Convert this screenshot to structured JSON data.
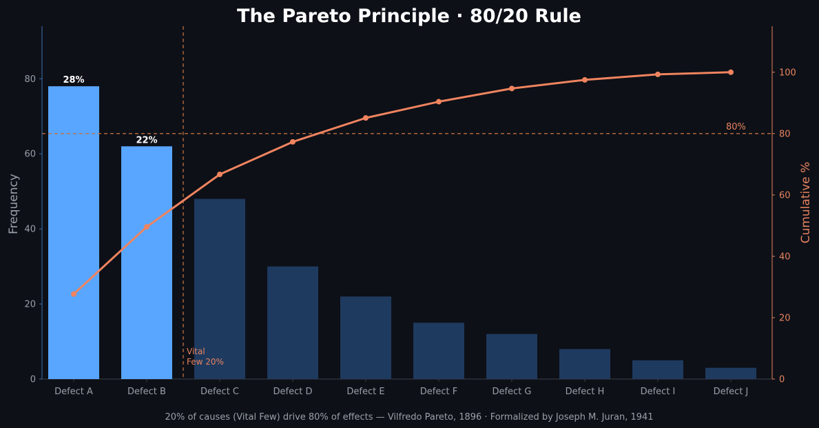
{
  "chart_data": {
    "type": "bar",
    "title": "The Pareto Principle  ·  80/20 Rule",
    "footer": "20% of causes (Vital Few) drive 80% of effects — Vilfredo Pareto, 1896 · Formalized by Joseph M. Juran, 1941",
    "categories": [
      "Defect A",
      "Defect B",
      "Defect C",
      "Defect D",
      "Defect E",
      "Defect F",
      "Defect G",
      "Defect H",
      "Defect I",
      "Defect J"
    ],
    "series": [
      {
        "name": "",
        "type": "bar",
        "axis": "left",
        "values": [
          78,
          62,
          48,
          30,
          22,
          15,
          12,
          8,
          5,
          3
        ]
      },
      {
        "name": "",
        "type": "line",
        "axis": "right",
        "values": [
          27.7,
          49.6,
          66.7,
          77.3,
          85.1,
          90.4,
          94.7,
          97.5,
          99.3,
          100
        ]
      }
    ],
    "highlight_count": 2,
    "bar_labels": [
      "28%",
      "22%"
    ],
    "ylabel": "Frequency",
    "ylabel_right": "Cumulative %",
    "ylim": [
      0,
      94
    ],
    "ylim_right": [
      0,
      115
    ],
    "yticks": [
      0,
      20,
      40,
      60,
      80
    ],
    "yticks_right": [
      0,
      20,
      40,
      60,
      80,
      100
    ],
    "threshold": {
      "value": 80,
      "label": "80%"
    },
    "vital_few_annotation": [
      "Vital",
      "Few 20%"
    ],
    "grid": false,
    "colors": {
      "background": "#0d1017",
      "vital_bar": "#58a6ff",
      "trivial_bar": "#1f3a5f",
      "line": "#f0845f",
      "threshold": "#c07040",
      "left_axis": "#3b6fb0",
      "right_axis": "#e8845f"
    }
  }
}
